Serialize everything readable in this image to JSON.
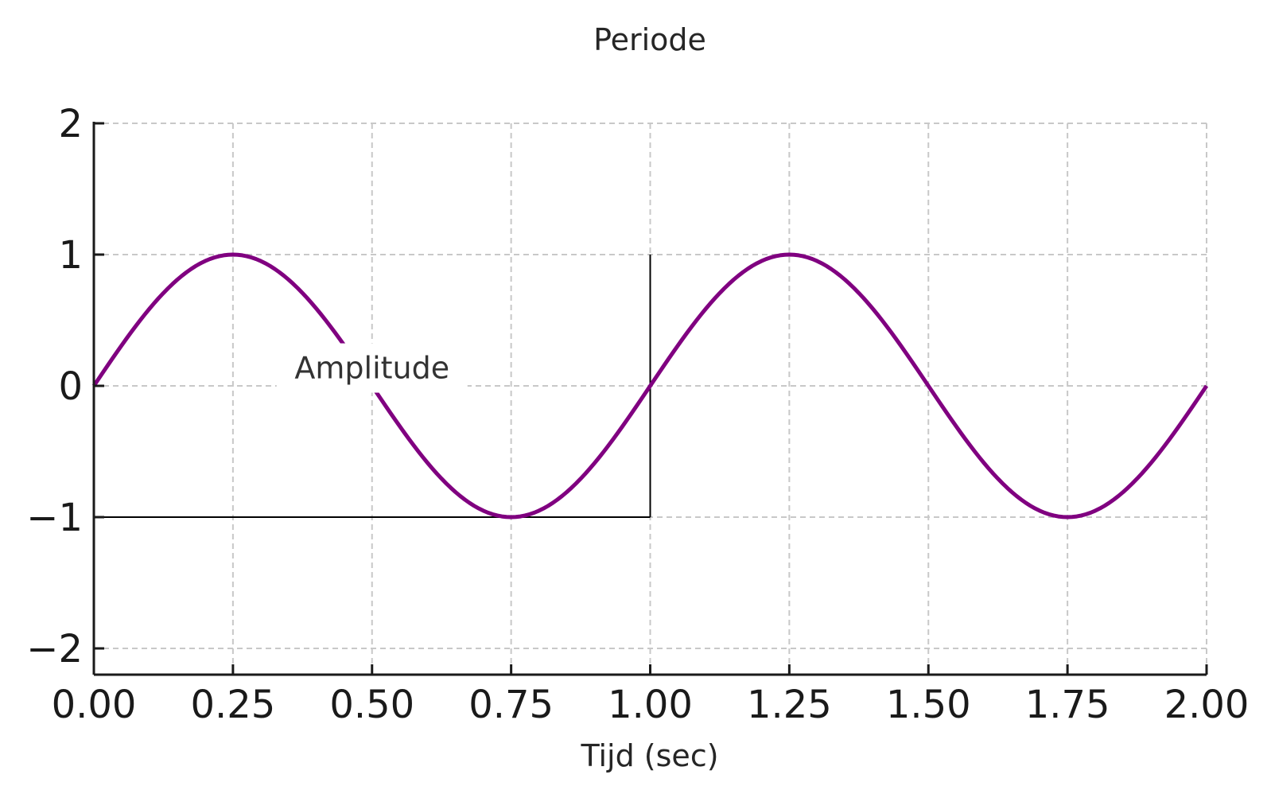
{
  "chart_data": {
    "type": "line",
    "title": "Periode",
    "xlabel": "Tijd (sec)",
    "ylabel": "",
    "xlim": [
      0,
      2
    ],
    "ylim": [
      -2.2,
      2
    ],
    "x_ticks": [
      0,
      0.25,
      0.5,
      0.75,
      1.0,
      1.25,
      1.5,
      1.75,
      2.0
    ],
    "x_tick_labels": [
      "0.00",
      "0.25",
      "0.50",
      "0.75",
      "1.00",
      "1.25",
      "1.50",
      "1.75",
      "2.00"
    ],
    "y_ticks": [
      -2,
      -1,
      0,
      1,
      2
    ],
    "y_tick_labels": [
      "−2",
      "−1",
      "0",
      "1",
      "2"
    ],
    "grid": true,
    "series": [
      {
        "color": "#800080",
        "x": [
          0,
          0.05,
          0.1,
          0.15,
          0.2,
          0.25,
          0.3,
          0.35,
          0.4,
          0.45,
          0.5,
          0.55,
          0.6,
          0.65,
          0.7,
          0.75,
          0.8,
          0.85,
          0.9,
          0.95,
          1.0,
          1.05,
          1.1,
          1.15,
          1.2,
          1.25,
          1.3,
          1.35,
          1.4,
          1.45,
          1.5,
          1.55,
          1.6,
          1.65,
          1.7,
          1.75,
          1.8,
          1.85,
          1.9,
          1.95,
          2.0
        ],
        "y": [
          0,
          0.309,
          0.588,
          0.809,
          0.951,
          1,
          0.951,
          0.809,
          0.588,
          0.309,
          0,
          -0.309,
          -0.588,
          -0.809,
          -0.951,
          -1,
          -0.951,
          -0.809,
          -0.588,
          -0.309,
          0,
          0.309,
          0.588,
          0.809,
          0.951,
          1,
          0.951,
          0.809,
          0.588,
          0.309,
          0,
          -0.309,
          -0.588,
          -0.809,
          -0.951,
          -1,
          -0.951,
          -0.809,
          -0.588,
          -0.309,
          0
        ]
      }
    ],
    "annotations": [
      {
        "text": "Amplitude",
        "x": 0.5,
        "y": 0.13
      }
    ],
    "guide_lines": [
      {
        "x": [
          0,
          1.0
        ],
        "y": [
          -1,
          -1
        ]
      },
      {
        "x": [
          1.0,
          1.0
        ],
        "y": [
          -1,
          1
        ]
      }
    ]
  }
}
